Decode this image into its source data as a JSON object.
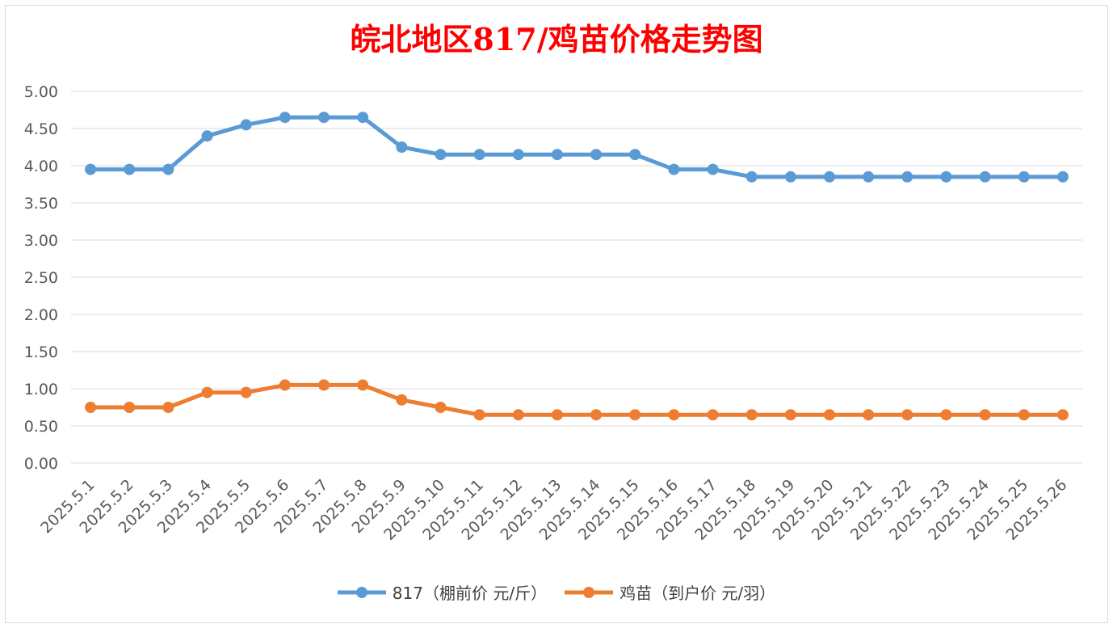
{
  "chart_data": {
    "type": "line",
    "title": "皖北地区817/鸡苗价格走势图",
    "categories": [
      "2025.5.1",
      "2025.5.2",
      "2025.5.3",
      "2025.5.4",
      "2025.5.5",
      "2025.5.6",
      "2025.5.7",
      "2025.5.8",
      "2025.5.9",
      "2025.5.10",
      "2025.5.11",
      "2025.5.12",
      "2025.5.13",
      "2025.5.14",
      "2025.5.15",
      "2025.5.16",
      "2025.5.17",
      "2025.5.18",
      "2025.5.19",
      "2025.5.20",
      "2025.5.21",
      "2025.5.22",
      "2025.5.23",
      "2025.5.24",
      "2025.5.25",
      "2025.5.26"
    ],
    "yticks": [
      "0.00",
      "0.50",
      "1.00",
      "1.50",
      "2.00",
      "2.50",
      "3.00",
      "3.50",
      "4.00",
      "4.50",
      "5.00"
    ],
    "ylim": [
      0,
      5
    ],
    "grid": true,
    "legend_position": "bottom",
    "series": [
      {
        "name": "817（棚前价 元/斤）",
        "color": "#5b9bd5",
        "values": [
          3.95,
          3.95,
          3.95,
          4.4,
          4.55,
          4.65,
          4.65,
          4.65,
          4.25,
          4.15,
          4.15,
          4.15,
          4.15,
          4.15,
          4.15,
          3.95,
          3.95,
          3.85,
          3.85,
          3.85,
          3.85,
          3.85,
          3.85,
          3.85,
          3.85,
          3.85
        ]
      },
      {
        "name": "鸡苗（到户价 元/羽）",
        "color": "#ed7d31",
        "values": [
          0.75,
          0.75,
          0.75,
          0.95,
          0.95,
          1.05,
          1.05,
          1.05,
          0.85,
          0.75,
          0.65,
          0.65,
          0.65,
          0.65,
          0.65,
          0.65,
          0.65,
          0.65,
          0.65,
          0.65,
          0.65,
          0.65,
          0.65,
          0.65,
          0.65,
          0.65
        ]
      }
    ]
  }
}
